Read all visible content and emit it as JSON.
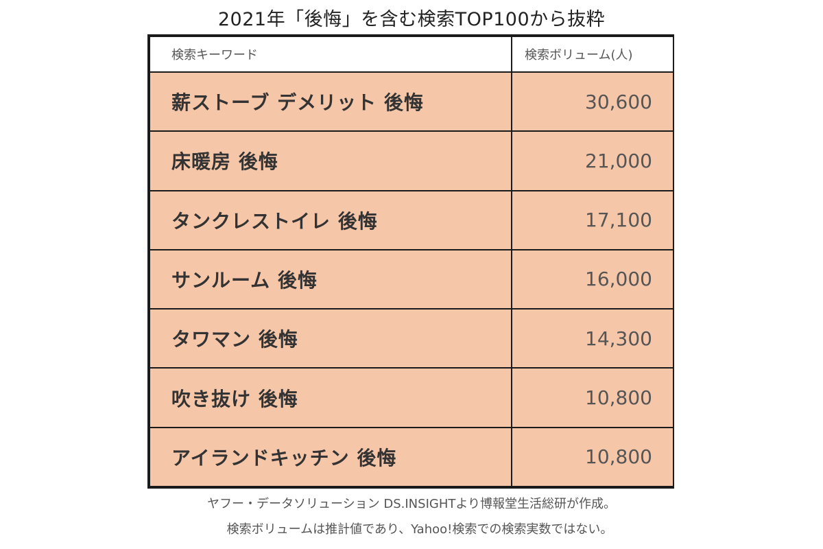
{
  "chart_data": {
    "type": "table",
    "title": "2021年「後悔」を含む検索TOP100から抜粋",
    "columns": [
      "検索キーワード",
      "検索ボリューム(人)"
    ],
    "rows": [
      {
        "keyword": "薪ストーブ デメリット 後悔",
        "volume": "30,600"
      },
      {
        "keyword": "床暖房 後悔",
        "volume": "21,000"
      },
      {
        "keyword": "タンクレストイレ 後悔",
        "volume": "17,100"
      },
      {
        "keyword": "サンルーム 後悔",
        "volume": "16,000"
      },
      {
        "keyword": "タワマン 後悔",
        "volume": "14,300"
      },
      {
        "keyword": "吹き抜け 後悔",
        "volume": "10,800"
      },
      {
        "keyword": "アイランドキッチン 後悔",
        "volume": "10,800"
      }
    ],
    "row_color": "#f6c6a8"
  },
  "notes": [
    "ヤフー・データソリューション DS.INSIGHTより博報堂生活総研が作成。",
    "検索ボリュームは推計値であり、Yahoo!検索での検索実数ではない。"
  ]
}
